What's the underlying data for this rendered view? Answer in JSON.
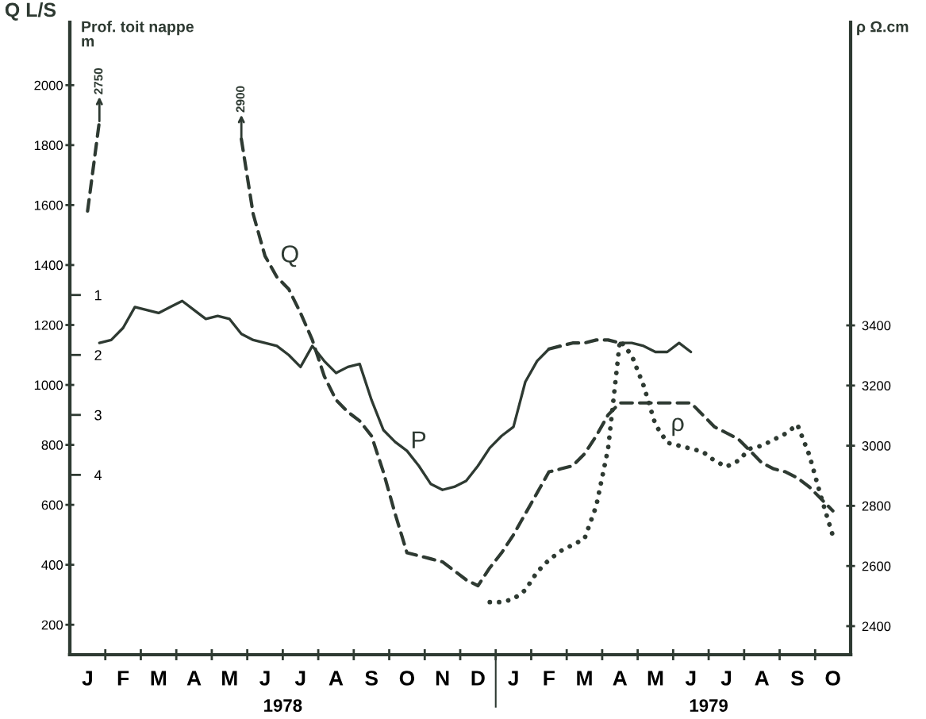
{
  "chart_data": {
    "type": "line",
    "ylabel": "Q L/S",
    "y2label": "Prof. toit nappe\nm",
    "y3label": "ρ Ω.cm",
    "categories": [
      null,
      "J",
      null,
      null,
      "F",
      null,
      null,
      "M",
      null,
      null,
      "A",
      null,
      null,
      "M",
      null,
      null,
      "J",
      null,
      null,
      "J",
      null,
      null,
      "A",
      null,
      null,
      "S",
      null,
      null,
      "O",
      null,
      null,
      "N",
      null,
      null,
      "D",
      null,
      null,
      "J",
      null,
      null,
      "F",
      null,
      null,
      "M",
      null,
      null,
      "A",
      null,
      null,
      "M",
      null,
      null,
      "J",
      null,
      null,
      "J",
      null,
      null,
      "A",
      null,
      null,
      "S",
      null,
      null,
      "O",
      null
    ],
    "x2lim": [
      1978,
      1979.8333
    ],
    "x2ticks": [
      {
        "value": 1978.5,
        "label": "1978"
      },
      {
        "value": 1979,
        "label": null
      },
      {
        "value": 1979.5,
        "label": "1979"
      }
    ],
    "ylim": [
      100,
      2210
    ],
    "yticks": [
      200,
      400,
      600,
      800,
      1000,
      1200,
      1400,
      1600,
      1800,
      2000
    ],
    "y2lim": [
      7,
      -3.55
    ],
    "y2ticks": [
      1,
      2,
      3,
      4
    ],
    "y3lim": [
      2305,
      4408
    ],
    "y3ticks": [
      2400,
      2600,
      2800,
      3000,
      3200,
      3400
    ],
    "grid": false,
    "legend": false,
    "series": [
      {
        "axis": "y",
        "color": "#2e3a32",
        "line_style": "dashed",
        "values": [
          null,
          1580,
          1880,
          null,
          null,
          null,
          null,
          null,
          null,
          null,
          null,
          null,
          null,
          null,
          null,
          null,
          null,
          null,
          null,
          null,
          null,
          null,
          null,
          null,
          null,
          null,
          null,
          null,
          null,
          null,
          null,
          null,
          null,
          null,
          null,
          null,
          null,
          null,
          null,
          null,
          null,
          null,
          null,
          null,
          null,
          null,
          null,
          null,
          null,
          null,
          null,
          null,
          null,
          null,
          null,
          null,
          null,
          null,
          null,
          null,
          null,
          null,
          null,
          null,
          null,
          null
        ]
      },
      {
        "name": "Q",
        "axis": "y",
        "color": "#2e3a32",
        "line_style": "dashed",
        "values": [
          null,
          null,
          null,
          null,
          null,
          null,
          null,
          null,
          null,
          null,
          null,
          null,
          null,
          null,
          1820,
          1570,
          1430,
          1360,
          1320,
          1240,
          1150,
          1030,
          950,
          910,
          880,
          830,
          710,
          570,
          440,
          430,
          420,
          410,
          380,
          350,
          330,
          390,
          440,
          500,
          570,
          640,
          710,
          720,
          730,
          770,
          830,
          900,
          940,
          940,
          940,
          940,
          940,
          940,
          940,
          900,
          860,
          840,
          820,
          780,
          740,
          720,
          710,
          690,
          660,
          620,
          580,
          null
        ]
      },
      {
        "name": "P",
        "axis": "y2",
        "color": "#2e3a32",
        "line_style": "solid",
        "values": [
          null,
          null,
          1.8,
          1.75,
          1.55,
          1.2,
          1.25,
          1.3,
          1.2,
          1.1,
          1.25,
          1.4,
          1.35,
          1.4,
          1.65,
          1.75,
          1.8,
          1.85,
          2.0,
          2.2,
          1.85,
          2.1,
          2.3,
          2.2,
          2.15,
          2.75,
          3.25,
          3.45,
          3.6,
          3.85,
          4.15,
          4.25,
          4.2,
          4.1,
          3.85,
          3.55,
          3.35,
          3.2,
          2.45,
          2.1,
          1.9,
          null,
          null,
          null,
          null,
          null,
          null,
          null,
          null,
          null,
          null,
          null,
          null,
          null,
          null,
          null,
          null,
          null,
          null,
          null,
          null,
          null,
          null,
          null,
          null,
          null
        ]
      },
      {
        "axis": "y2",
        "color": "#2e3a32",
        "line_style": "dashed",
        "values": [
          null,
          null,
          null,
          null,
          null,
          null,
          null,
          null,
          null,
          null,
          null,
          null,
          null,
          null,
          null,
          null,
          null,
          null,
          null,
          null,
          null,
          null,
          null,
          null,
          null,
          null,
          null,
          null,
          null,
          null,
          null,
          null,
          null,
          null,
          null,
          null,
          null,
          null,
          null,
          null,
          1.9,
          1.85,
          1.8,
          1.8,
          1.75,
          1.75,
          1.8,
          null,
          null,
          null,
          null,
          null,
          null,
          null,
          null,
          null,
          null,
          null,
          null,
          null,
          null,
          null,
          null,
          null,
          null,
          null
        ]
      },
      {
        "axis": "y2",
        "color": "#2e3a32",
        "line_style": "solid",
        "values": [
          null,
          null,
          null,
          null,
          null,
          null,
          null,
          null,
          null,
          null,
          null,
          null,
          null,
          null,
          null,
          null,
          null,
          null,
          null,
          null,
          null,
          null,
          null,
          null,
          null,
          null,
          null,
          null,
          null,
          null,
          null,
          null,
          null,
          null,
          null,
          null,
          null,
          null,
          null,
          null,
          null,
          null,
          null,
          null,
          null,
          null,
          1.8,
          1.8,
          1.85,
          1.95,
          1.95,
          1.8,
          1.95,
          null,
          null,
          null,
          null,
          null,
          null,
          null,
          null,
          null,
          null,
          null,
          null,
          null
        ]
      },
      {
        "name": "ρ",
        "axis": "y3",
        "color": "#2e3a32",
        "line_style": "dotted",
        "values": [
          null,
          null,
          null,
          null,
          null,
          null,
          null,
          null,
          null,
          null,
          null,
          null,
          null,
          null,
          null,
          null,
          null,
          null,
          null,
          null,
          null,
          null,
          null,
          null,
          null,
          null,
          null,
          null,
          null,
          null,
          null,
          null,
          null,
          null,
          null,
          2480,
          2480,
          2490,
          2520,
          2580,
          2620,
          2650,
          2670,
          2690,
          2800,
          2990,
          3350,
          3300,
          3200,
          3070,
          3010,
          3000,
          2990,
          2980,
          2950,
          2930,
          2950,
          2990,
          3000,
          3020,
          3040,
          3070,
          2970,
          2830,
          2700,
          null
        ]
      }
    ],
    "annotations": [
      {
        "text": "2750",
        "y": 1880
      },
      {
        "text": "2900",
        "y": 1820
      }
    ]
  }
}
